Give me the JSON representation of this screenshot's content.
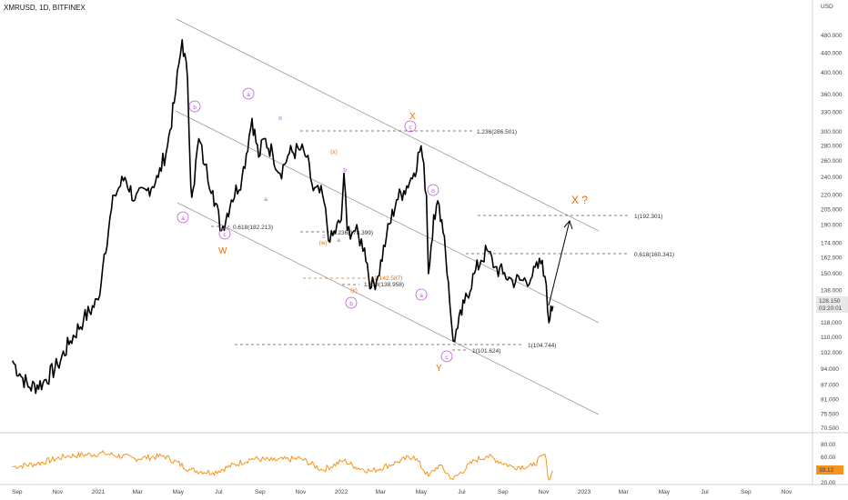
{
  "header": {
    "symbol": "XMRUSD, 1D, BITFINEX",
    "currency": "USD"
  },
  "colors": {
    "price": "#000000",
    "rsi": "#f7931a",
    "wave": "#bb55dd",
    "label_orange": "#ef6c00",
    "channel": "#9a9a9a",
    "price_tag": "#e8e8e8"
  },
  "price_tag": {
    "value": "128.150",
    "countdown": "03:20:01"
  },
  "rsi_tag": {
    "value": "39.12"
  },
  "chart_data": {
    "type": "line",
    "title": "XMRUSD, 1D, BITFINEX",
    "y_scale": "log",
    "ylim": [
      70.5,
      520
    ],
    "y_ticks": [
      "480.000",
      "440.000",
      "400.000",
      "360.000",
      "330.000",
      "300.000",
      "280.000",
      "260.000",
      "240.000",
      "220.000",
      "205.000",
      "190.000",
      "174.000",
      "162.000",
      "150.000",
      "138.000",
      "128.000",
      "118.000",
      "110.000",
      "102.000",
      "94.000",
      "87.000",
      "81.000",
      "75.500",
      "70.500"
    ],
    "x_ticks": [
      "Sep",
      "Nov",
      "2021",
      "Mar",
      "May",
      "Jul",
      "Sep",
      "Nov",
      "2022",
      "Mar",
      "May",
      "Jul",
      "Sep",
      "Nov",
      "2023",
      "Mar",
      "May",
      "Jul",
      "Sep",
      "Nov"
    ],
    "series": [
      {
        "name": "XMRUSD",
        "x": [
          "2020-08-25",
          "2020-09-05",
          "2020-09-20",
          "2020-10-10",
          "2020-11-01",
          "2020-11-20",
          "2020-12-10",
          "2021-01-01",
          "2021-01-10",
          "2021-01-25",
          "2021-02-10",
          "2021-02-25",
          "2021-03-15",
          "2021-04-01",
          "2021-04-15",
          "2021-04-25",
          "2021-05-07",
          "2021-05-15",
          "2021-05-20",
          "2021-05-23",
          "2021-06-01",
          "2021-06-10",
          "2021-06-22",
          "2021-07-05",
          "2021-07-20",
          "2021-08-05",
          "2021-08-20",
          "2021-08-30",
          "2021-09-07",
          "2021-09-20",
          "2021-10-01",
          "2021-10-15",
          "2021-11-01",
          "2021-11-10",
          "2021-11-20",
          "2021-12-04",
          "2021-12-15",
          "2022-01-01",
          "2022-01-05",
          "2022-01-10",
          "2022-01-22",
          "2022-02-05",
          "2022-02-15",
          "2022-02-25",
          "2022-03-10",
          "2022-03-25",
          "2022-04-05",
          "2022-04-20",
          "2022-05-01",
          "2022-05-09",
          "2022-05-12",
          "2022-05-20",
          "2022-05-28",
          "2022-06-05",
          "2022-06-13",
          "2022-06-18",
          "2022-06-25",
          "2022-07-05",
          "2022-07-20",
          "2022-07-30",
          "2022-08-08",
          "2022-08-20",
          "2022-09-01",
          "2022-09-15",
          "2022-10-01",
          "2022-10-15",
          "2022-10-30",
          "2022-11-03",
          "2022-11-09",
          "2022-11-12",
          "2022-11-15"
        ],
        "y": [
          98,
          92,
          86,
          88,
          96,
          108,
          120,
          132,
          165,
          220,
          240,
          215,
          225,
          240,
          280,
          345,
          470,
          390,
          230,
          225,
          290,
          255,
          225,
          185,
          215,
          240,
          320,
          265,
          290,
          270,
          245,
          270,
          275,
          265,
          225,
          220,
          175,
          195,
          245,
          185,
          185,
          170,
          140,
          148,
          180,
          215,
          225,
          245,
          280,
          220,
          150,
          200,
          210,
          180,
          130,
          108,
          115,
          130,
          150,
          160,
          168,
          155,
          150,
          145,
          145,
          148,
          160,
          148,
          118,
          128,
          128
        ]
      },
      {
        "name": "RSI",
        "x": [
          "2020-08-25",
          "2020-10-01",
          "2020-11-15",
          "2021-01-10",
          "2021-02-25",
          "2021-04-10",
          "2021-05-20",
          "2021-06-22",
          "2021-08-20",
          "2021-09-20",
          "2021-11-01",
          "2021-12-04",
          "2022-01-05",
          "2022-01-22",
          "2022-02-15",
          "2022-03-25",
          "2022-04-20",
          "2022-05-12",
          "2022-05-28",
          "2022-06-18",
          "2022-07-20",
          "2022-08-08",
          "2022-09-15",
          "2022-10-15",
          "2022-11-03",
          "2022-11-09",
          "2022-11-15"
        ],
        "y": [
          45,
          50,
          62,
          66,
          58,
          62,
          40,
          36,
          58,
          55,
          58,
          40,
          55,
          45,
          38,
          52,
          62,
          30,
          48,
          25,
          55,
          62,
          45,
          46,
          65,
          24,
          39
        ]
      }
    ],
    "rsi_ticks": [
      "80.00",
      "60.00",
      "40.00",
      "20.00"
    ]
  },
  "annotations": {
    "fib_236_286": "1.236(286.501)",
    "fib_618_182": "0.618(182.213)",
    "fib_236_178": "1.236(178.399)",
    "fib_618_160": "0.618(160.341)",
    "fib_1_192": "1(192.301)",
    "fib_1_142": "1(142.587)",
    "fib_1618_138": "1.618(138.958)",
    "fib_1_104": "1(104.744)",
    "fib_1_101": "1(101.624)",
    "label_w_big": "W",
    "label_x": "X",
    "label_y": "Y",
    "label_xq": "X ?",
    "wave_a": "a",
    "wave_b": "b",
    "wave_c": "c",
    "wave_w": "(w)",
    "wave_x": "(x)",
    "wave_y": "(y)"
  }
}
